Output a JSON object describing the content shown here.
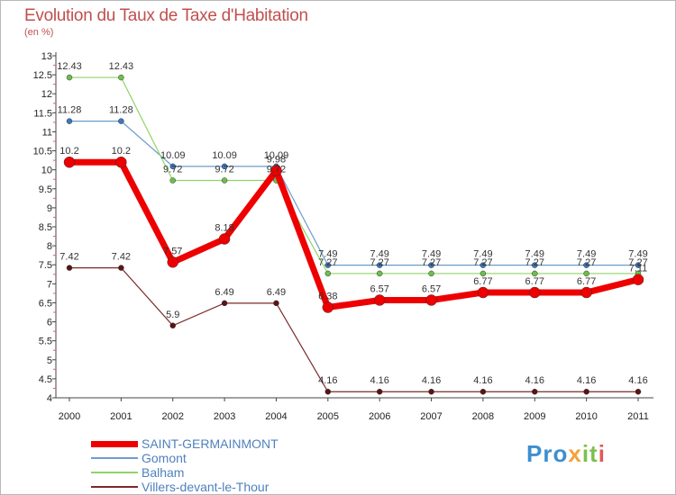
{
  "title": "Evolution du Taux de Taxe d'Habitation",
  "subtitle": "(en %)",
  "logo": {
    "text": "Proxiti",
    "parts": [
      "Pro",
      "x",
      "it",
      "i"
    ]
  },
  "chart_data": {
    "type": "line",
    "title": "Evolution du Taux de Taxe d'Habitation",
    "ylabel": "(en %)",
    "xlabel": "",
    "ylim": [
      4,
      13
    ],
    "ytick_step": 0.5,
    "grid": false,
    "legend_position": "bottom-left",
    "categories": [
      "2000",
      "2001",
      "2002",
      "2003",
      "2004",
      "2005",
      "2006",
      "2007",
      "2008",
      "2009",
      "2010",
      "2011"
    ],
    "yticks": [
      "4",
      "4.5",
      "5",
      "5.5",
      "6",
      "6.5",
      "7",
      "7.5",
      "8",
      "8.5",
      "9",
      "9.5",
      "10",
      "10.5",
      "11",
      "11.5",
      "12",
      "12.5",
      "13"
    ],
    "series": [
      {
        "name": "Gomont",
        "color": "#6f9ccc",
        "marker": "#3a78c0",
        "width": 1.2,
        "radius": 3,
        "values": [
          11.28,
          11.28,
          10.09,
          10.09,
          10.09,
          7.49,
          7.49,
          7.49,
          7.49,
          7.49,
          7.49,
          7.49
        ],
        "labels": [
          "11.28",
          "11.28",
          "10.09",
          "10.09",
          "10.09",
          "7.49",
          "7.49",
          "7.49",
          "7.49",
          "7.49",
          "7.49",
          "7.49"
        ]
      },
      {
        "name": "Balham",
        "color": "#8fd46a",
        "marker": "#6cc04a",
        "width": 1.2,
        "radius": 3,
        "values": [
          12.43,
          12.43,
          9.72,
          9.72,
          9.72,
          7.27,
          7.27,
          7.27,
          7.27,
          7.27,
          7.27,
          7.27
        ],
        "labels": [
          "12.43",
          "12.43",
          "9.72",
          "9.72",
          "9.72",
          "7.27",
          "7.27",
          "7.27",
          "7.27",
          "7.27",
          "7.27",
          "7.27"
        ]
      },
      {
        "name": "Villers-devant-le-Thour",
        "color": "#7a2a2a",
        "marker": "#5a1414",
        "width": 1.2,
        "radius": 3,
        "values": [
          7.42,
          7.42,
          5.9,
          6.49,
          6.49,
          4.16,
          4.16,
          4.16,
          4.16,
          4.16,
          4.16,
          4.16
        ],
        "labels": [
          "7.42",
          "7.42",
          "5.9",
          "6.49",
          "6.49",
          "4.16",
          "4.16",
          "4.16",
          "4.16",
          "4.16",
          "4.16",
          "4.16"
        ]
      },
      {
        "name": "SAINT-GERMAINMONT",
        "color": "#ee0000",
        "marker": "#ee0000",
        "width": 7,
        "radius": 6,
        "values": [
          10.2,
          10.2,
          7.57,
          8.18,
          9.98,
          6.38,
          6.57,
          6.57,
          6.77,
          6.77,
          6.77,
          7.11
        ],
        "labels": [
          "10.2",
          "10.2",
          "7.57",
          "8.18",
          "9.98",
          "6.38",
          "6.57",
          "6.57",
          "6.77",
          "6.77",
          "6.77",
          "7.11"
        ]
      }
    ],
    "legend": [
      "SAINT-GERMAINMONT",
      "Gomont",
      "Balham",
      "Villers-devant-le-Thour"
    ]
  }
}
